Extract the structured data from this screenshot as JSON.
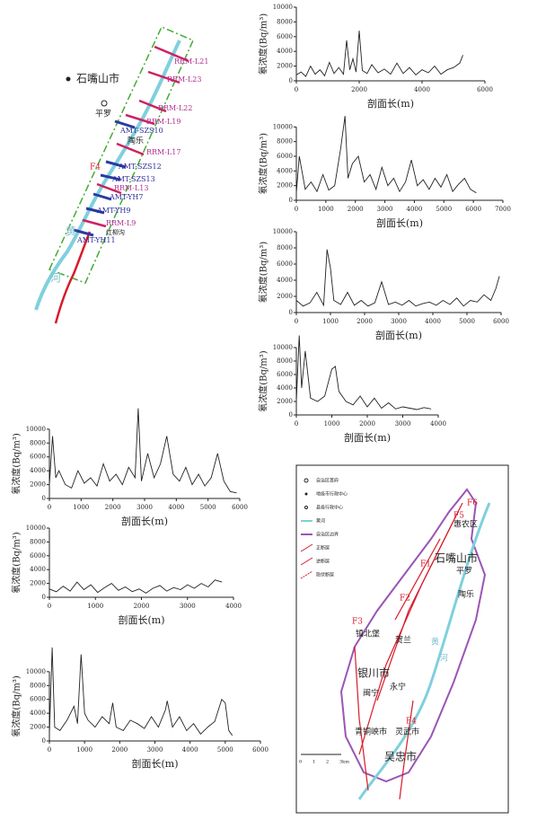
{
  "chart_data": [
    {
      "type": "line",
      "ylabel": "氡浓度(Bq/m³)",
      "xlabel": "剖面长(m)",
      "color": "#222222",
      "xlim": [
        0,
        6000
      ],
      "xticks": [
        0,
        2000,
        4000,
        6000
      ],
      "ylim": [
        0,
        10000
      ],
      "yticks": [
        0,
        2000,
        4000,
        6000,
        8000,
        10000
      ],
      "x": [
        0,
        150,
        300,
        450,
        600,
        750,
        900,
        1050,
        1200,
        1350,
        1500,
        1600,
        1700,
        1800,
        1900,
        2000,
        2100,
        2250,
        2400,
        2600,
        2800,
        3000,
        3200,
        3400,
        3600,
        3800,
        4000,
        4200,
        4400,
        4600,
        4800,
        5000,
        5200,
        5300
      ],
      "values": [
        800,
        1200,
        600,
        2000,
        900,
        1500,
        700,
        2500,
        1000,
        1800,
        900,
        5500,
        1500,
        3000,
        1200,
        6800,
        1400,
        1000,
        2200,
        1100,
        1600,
        900,
        2400,
        1000,
        1800,
        800,
        1500,
        1100,
        2000,
        900,
        1500,
        1800,
        2400,
        3500
      ]
    },
    {
      "type": "line",
      "ylabel": "氡浓度(Bq/m³)",
      "xlabel": "剖面长(m)",
      "color": "#222222",
      "xlim": [
        0,
        7000
      ],
      "xticks": [
        0,
        1000,
        2000,
        3000,
        4000,
        5000,
        6000,
        7000
      ],
      "ylim": [
        0,
        12000
      ],
      "yticks": [
        0,
        2000,
        4000,
        6000,
        8000,
        10000
      ],
      "x": [
        0,
        100,
        300,
        500,
        700,
        900,
        1100,
        1300,
        1500,
        1650,
        1750,
        1900,
        2100,
        2300,
        2500,
        2700,
        2900,
        3100,
        3300,
        3500,
        3700,
        3900,
        4100,
        4300,
        4500,
        4700,
        4900,
        5100,
        5300,
        5500,
        5700,
        5900,
        6100
      ],
      "values": [
        1000,
        6000,
        1500,
        2500,
        1200,
        3500,
        1400,
        2000,
        7000,
        11500,
        3000,
        5000,
        6000,
        2500,
        3500,
        1500,
        4500,
        2000,
        3000,
        1200,
        2500,
        5500,
        2000,
        2800,
        1500,
        3000,
        1800,
        3500,
        1200,
        2200,
        3000,
        1500,
        1000
      ]
    },
    {
      "type": "line",
      "ylabel": "氡浓度(Bq/m³)",
      "xlabel": "剖面长(m)",
      "color": "#222222",
      "xlim": [
        0,
        6000
      ],
      "xticks": [
        0,
        1000,
        2000,
        3000,
        4000,
        5000,
        6000
      ],
      "ylim": [
        0,
        10000
      ],
      "yticks": [
        0,
        2000,
        4000,
        6000,
        8000,
        10000
      ],
      "x": [
        0,
        200,
        400,
        600,
        800,
        900,
        1000,
        1100,
        1300,
        1500,
        1700,
        1900,
        2100,
        2300,
        2500,
        2700,
        2900,
        3100,
        3300,
        3500,
        3700,
        3900,
        4100,
        4300,
        4500,
        4700,
        4900,
        5100,
        5300,
        5500,
        5700,
        5850,
        5950
      ],
      "values": [
        1500,
        800,
        1200,
        2500,
        900,
        7800,
        5500,
        1500,
        1000,
        2500,
        900,
        1500,
        800,
        1200,
        3800,
        1000,
        1300,
        900,
        1500,
        800,
        1100,
        1300,
        900,
        1500,
        1000,
        1800,
        800,
        1500,
        1300,
        2200,
        1500,
        3000,
        4500
      ]
    },
    {
      "type": "line",
      "ylabel": "氡浓度(Bq/m³)",
      "xlabel": "剖面长(m)",
      "color": "#222222",
      "xlim": [
        0,
        4000
      ],
      "xticks": [
        0,
        1000,
        2000,
        3000,
        4000
      ],
      "ylim": [
        0,
        12000
      ],
      "yticks": [
        0,
        2000,
        4000,
        6000,
        8000,
        10000
      ],
      "x": [
        0,
        80,
        150,
        250,
        400,
        600,
        800,
        1000,
        1100,
        1200,
        1400,
        1600,
        1800,
        2000,
        2200,
        2400,
        2600,
        2800,
        3000,
        3200,
        3400,
        3600,
        3800
      ],
      "values": [
        2000,
        11800,
        4000,
        9500,
        2500,
        2000,
        2800,
        6800,
        7200,
        3500,
        2000,
        1500,
        2800,
        1200,
        2500,
        1000,
        1800,
        900,
        1200,
        1000,
        800,
        1100,
        900
      ]
    },
    {
      "type": "line",
      "ylabel": "氡浓度(Bq/m³)",
      "xlabel": "剖面长(m)",
      "color": "#222222",
      "xlim": [
        0,
        6000
      ],
      "xticks": [
        0,
        1000,
        2000,
        3000,
        4000,
        5000,
        6000
      ],
      "ylim": [
        0,
        14000
      ],
      "yticks": [
        0,
        2000,
        4000,
        6000,
        8000,
        10000
      ],
      "x": [
        0,
        100,
        200,
        300,
        500,
        700,
        900,
        1100,
        1300,
        1500,
        1700,
        1900,
        2100,
        2300,
        2500,
        2700,
        2800,
        2900,
        3100,
        3300,
        3500,
        3700,
        3900,
        4100,
        4300,
        4500,
        4700,
        4900,
        5100,
        5300,
        5500,
        5700,
        5900
      ],
      "values": [
        2000,
        9000,
        3000,
        4000,
        2000,
        1500,
        4000,
        2200,
        3000,
        1800,
        5000,
        2500,
        3500,
        2000,
        4500,
        3000,
        13000,
        2500,
        6500,
        3000,
        5000,
        9000,
        3500,
        2500,
        4500,
        2000,
        3500,
        1800,
        3000,
        6500,
        2500,
        1000,
        800
      ]
    },
    {
      "type": "line",
      "ylabel": "氡浓度(Bq/m³)",
      "xlabel": "剖面长(m)",
      "color": "#222222",
      "xlim": [
        0,
        4000
      ],
      "xticks": [
        0,
        1000,
        2000,
        3000,
        4000
      ],
      "ylim": [
        0,
        10000
      ],
      "yticks": [
        0,
        2000,
        4000,
        6000,
        8000,
        10000
      ],
      "x": [
        0,
        150,
        300,
        450,
        600,
        750,
        900,
        1050,
        1200,
        1350,
        1500,
        1650,
        1800,
        1950,
        2100,
        2250,
        2400,
        2550,
        2700,
        2850,
        3000,
        3150,
        3300,
        3450,
        3600,
        3750
      ],
      "values": [
        1200,
        800,
        1600,
        900,
        2200,
        1100,
        1800,
        700,
        1400,
        2000,
        1000,
        1500,
        800,
        1200,
        600,
        1300,
        1700,
        900,
        1400,
        1100,
        1800,
        1300,
        2000,
        1500,
        2500,
        2200
      ]
    },
    {
      "type": "line",
      "ylabel": "氡浓度(Bq/m³)",
      "xlabel": "剖面长(m)",
      "color": "#222222",
      "xlim": [
        0,
        6000
      ],
      "xticks": [
        0,
        1000,
        2000,
        3000,
        4000,
        5000,
        6000
      ],
      "ylim": [
        0,
        14000
      ],
      "yticks": [
        0,
        2000,
        4000,
        6000,
        8000,
        10000
      ],
      "x": [
        0,
        80,
        150,
        300,
        500,
        700,
        800,
        900,
        1000,
        1100,
        1300,
        1500,
        1700,
        1800,
        1900,
        2100,
        2300,
        2500,
        2700,
        2900,
        3100,
        3300,
        3350,
        3500,
        3700,
        3900,
        4100,
        4300,
        4500,
        4700,
        4900,
        5000,
        5100,
        5200
      ],
      "values": [
        1000,
        13500,
        2000,
        1500,
        3000,
        5000,
        2500,
        12500,
        4000,
        3000,
        2000,
        3500,
        2500,
        5500,
        2000,
        1500,
        3000,
        2500,
        1800,
        3500,
        2000,
        4500,
        5800,
        2000,
        3500,
        1500,
        2500,
        1000,
        2000,
        2800,
        6000,
        5500,
        1500,
        800
      ]
    }
  ],
  "map_profiles": {
    "labels": [
      "石嘴山市",
      "平罗",
      "陶乐",
      "RRM-L21",
      "RRM-L23",
      "RRM-L22",
      "RRM-L19",
      "RRM-L17",
      "AMT-SZS10",
      "AMT-SZS12",
      "AMT-SZS13",
      "RRM-L13",
      "AMT-YH7",
      "AMT-YH9",
      "RRM-L9",
      "红柳沟",
      "AMT-YH11",
      "F4",
      "黄",
      "河"
    ]
  },
  "map_regional": {
    "legend": [
      "自治区首府",
      "地级市行政中心",
      "县级行政中心",
      "黄河",
      "自治区边界",
      "正断层",
      "逆断层",
      "隐伏断层"
    ],
    "labels": [
      "惠农区",
      "石嘴山市",
      "平罗",
      "陶乐",
      "贺兰",
      "镇北堡",
      "银川市",
      "永宁",
      "闽宁",
      "青铜峡市",
      "灵武市",
      "吴忠市",
      "黄",
      "河",
      "F1",
      "F2",
      "F3",
      "F4",
      "F5",
      "F6"
    ],
    "scale": [
      "0",
      "1",
      "2",
      "3km"
    ]
  }
}
